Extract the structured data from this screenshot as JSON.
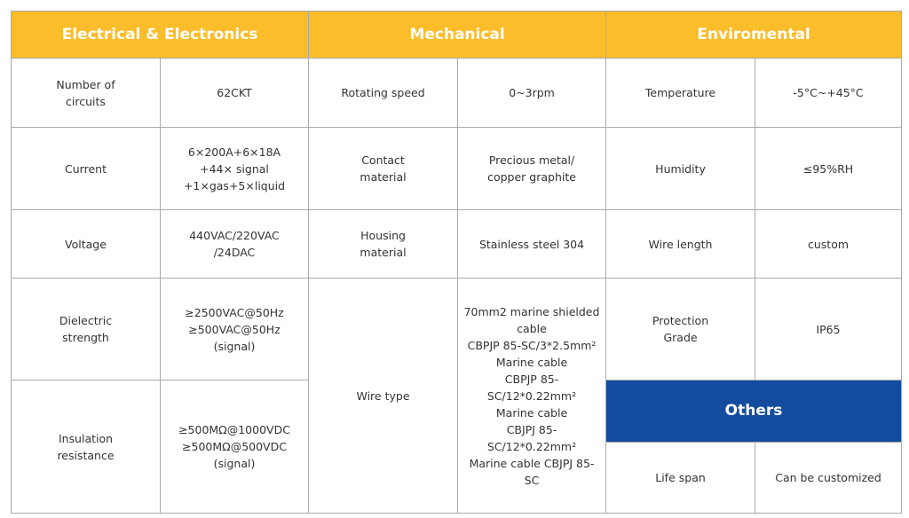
{
  "headers": {
    "electrical": "Electrical & Electronics",
    "mechanical": "Mechanical",
    "environmental": "Enviromental",
    "others": "Others"
  },
  "rows": {
    "circuits": {
      "label": "Number of\ncircuits",
      "value": "62CKT"
    },
    "current": {
      "label": "Current",
      "value": "6×200A+6×18A\n+44× signal\n+1×gas+5×liquid"
    },
    "voltage": {
      "label": "Voltage",
      "value": "440VAC/220VAC\n/24DAC"
    },
    "dielectric": {
      "label": "Dielectric\nstrength",
      "value": "≥2500VAC@50Hz\n≥500VAC@50Hz\n(signal)"
    },
    "insulation": {
      "label": "Insulation\nresistance",
      "value": "≥500MΩ@1000VDC\n≥500MΩ@500VDC\n(signal)"
    }
  },
  "mechanical": {
    "rotating_speed": {
      "label": "Rotating speed",
      "value": "0~3rpm"
    },
    "contact_material": {
      "label": "Contact\nmaterial",
      "value": "Precious metal/\ncopper graphite"
    },
    "housing_material": {
      "label": "Housing\nmaterial",
      "value": "Stainless steel 304"
    },
    "wire_type": {
      "label": "Wire type",
      "value": "70mm2 marine shielded\ncable\nCBPJP 85-SC/3*2.5mm²\nMarine cable\nCBPJP 85-SC/12*0.22mm²\nMarine cable\nCBJPJ 85-SC/12*0.22mm²\nMarine cable CBJPJ 85-SC"
    }
  },
  "environmental": {
    "temperature": {
      "label": "Temperature",
      "value": "-5°C~+45°C"
    },
    "humidity": {
      "label": "Humidity",
      "value": "≤95%RH"
    },
    "wire_length": {
      "label": "Wire length",
      "value": "custom"
    },
    "protection": {
      "label": "Protection\nGrade",
      "value": "IP65"
    }
  },
  "others": {
    "life_span": {
      "label": "Life span",
      "value": "Can be customized"
    }
  },
  "colors": {
    "header_yellow": "#fcbd2b",
    "header_blue": "#134c9e",
    "border": "#a9a9a9",
    "text": "#333333"
  }
}
